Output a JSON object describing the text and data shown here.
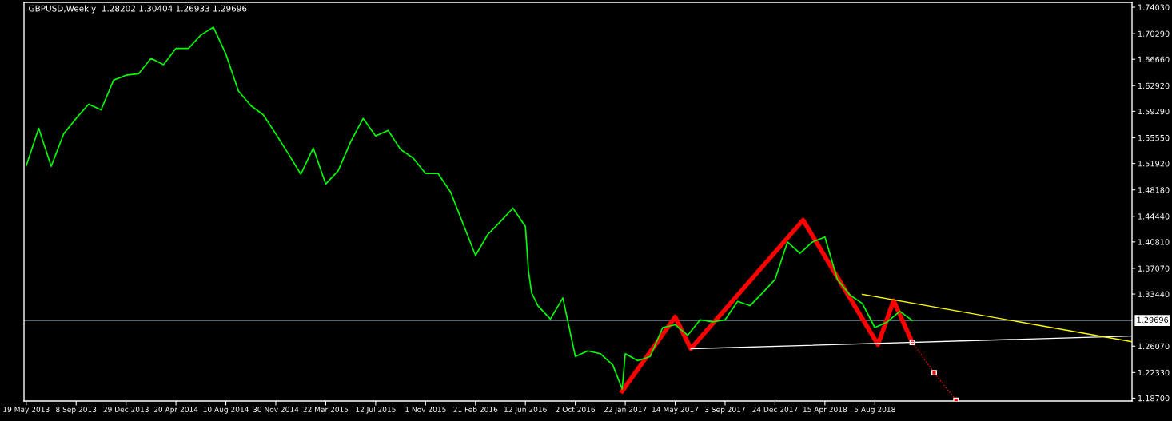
{
  "chart_data": {
    "type": "line",
    "title": "GBPUSD,Weekly  1.28202 1.30404 1.26933 1.29696",
    "xlim": [
      "2013-05-14",
      "2020-03-04"
    ],
    "ylim": [
      1.183,
      1.7471
    ],
    "xticks": [
      {
        "value": "2013-05-19",
        "label": "19 May 2013"
      },
      {
        "value": "2013-09-08",
        "label": "8 Sep 2013"
      },
      {
        "value": "2013-12-29",
        "label": "29 Dec 2013"
      },
      {
        "value": "2014-04-20",
        "label": "20 Apr 2014"
      },
      {
        "value": "2014-08-10",
        "label": "10 Aug 2014"
      },
      {
        "value": "2014-11-30",
        "label": "30 Nov 2014"
      },
      {
        "value": "2015-03-22",
        "label": "22 Mar 2015"
      },
      {
        "value": "2015-07-12",
        "label": "12 Jul 2015"
      },
      {
        "value": "2015-11-01",
        "label": "1 Nov 2015"
      },
      {
        "value": "2016-02-21",
        "label": "21 Feb 2016"
      },
      {
        "value": "2016-06-12",
        "label": "12 Jun 2016"
      },
      {
        "value": "2016-10-02",
        "label": "2 Oct 2016"
      },
      {
        "value": "2017-01-22",
        "label": "22 Jan 2017"
      },
      {
        "value": "2017-05-14",
        "label": "14 May 2017"
      },
      {
        "value": "2017-09-03",
        "label": "3 Sep 2017"
      },
      {
        "value": "2017-12-24",
        "label": "24 Dec 2017"
      },
      {
        "value": "2018-04-15",
        "label": "15 Apr 2018"
      },
      {
        "value": "2018-08-05",
        "label": "5 Aug 2018"
      }
    ],
    "yticks": [
      {
        "value": 1.7403,
        "label": "1.74030"
      },
      {
        "value": 1.7029,
        "label": "1.70290"
      },
      {
        "value": 1.6666,
        "label": "1.66660"
      },
      {
        "value": 1.6292,
        "label": "1.62920"
      },
      {
        "value": 1.5929,
        "label": "1.59290"
      },
      {
        "value": 1.5555,
        "label": "1.55550"
      },
      {
        "value": 1.5192,
        "label": "1.51920"
      },
      {
        "value": 1.4818,
        "label": "1.48180"
      },
      {
        "value": 1.4444,
        "label": "1.44440"
      },
      {
        "value": 1.4081,
        "label": "1.40810"
      },
      {
        "value": 1.3707,
        "label": "1.37070"
      },
      {
        "value": 1.3344,
        "label": "1.33440"
      },
      {
        "value": 1.2607,
        "label": "1.26070"
      },
      {
        "value": 1.2233,
        "label": "1.22330"
      },
      {
        "value": 1.187,
        "label": "1.18700"
      }
    ],
    "ref_lines": [
      {
        "axis": "y",
        "value": 1.29696,
        "label": "1.29696",
        "color": "#778899"
      }
    ],
    "series": [
      {
        "color": "#00ff00",
        "line_style": "solid",
        "x": [
          "2013-05-19",
          "2013-06-16",
          "2013-07-14",
          "2013-08-11",
          "2013-09-08",
          "2013-10-06",
          "2013-11-03",
          "2013-12-01",
          "2013-12-29",
          "2014-01-26",
          "2014-02-23",
          "2014-03-23",
          "2014-04-20",
          "2014-05-18",
          "2014-06-15",
          "2014-07-13",
          "2014-08-10",
          "2014-09-07",
          "2014-10-05",
          "2014-11-02",
          "2014-11-30",
          "2014-12-28",
          "2015-01-25",
          "2015-02-22",
          "2015-03-22",
          "2015-04-19",
          "2015-05-17",
          "2015-06-14",
          "2015-07-12",
          "2015-08-09",
          "2015-09-06",
          "2015-10-04",
          "2015-11-01",
          "2015-11-29",
          "2015-12-27",
          "2016-01-24",
          "2016-02-21",
          "2016-03-20",
          "2016-04-17",
          "2016-05-15",
          "2016-06-12",
          "2016-06-19",
          "2016-06-26",
          "2016-07-10",
          "2016-08-07",
          "2016-09-04",
          "2016-10-02",
          "2016-10-30",
          "2016-11-27",
          "2016-12-25",
          "2017-01-15",
          "2017-01-22",
          "2017-02-19",
          "2017-03-19",
          "2017-04-16",
          "2017-05-14",
          "2017-06-11",
          "2017-07-09",
          "2017-08-06",
          "2017-09-03",
          "2017-10-01",
          "2017-10-29",
          "2017-11-26",
          "2017-12-24",
          "2018-01-21",
          "2018-02-18",
          "2018-03-18",
          "2018-04-15",
          "2018-05-13",
          "2018-06-10",
          "2018-07-08",
          "2018-08-05",
          "2018-09-02",
          "2018-09-30",
          "2018-10-28"
        ],
        "values": [
          1.516,
          1.569,
          1.515,
          1.561,
          1.583,
          1.603,
          1.595,
          1.637,
          1.644,
          1.646,
          1.668,
          1.659,
          1.682,
          1.682,
          1.701,
          1.712,
          1.674,
          1.622,
          1.601,
          1.588,
          1.561,
          1.533,
          1.504,
          1.541,
          1.49,
          1.509,
          1.55,
          1.583,
          1.558,
          1.566,
          1.539,
          1.527,
          1.505,
          1.505,
          1.479,
          1.434,
          1.389,
          1.419,
          1.437,
          1.456,
          1.43,
          1.366,
          1.336,
          1.318,
          1.299,
          1.329,
          1.246,
          1.254,
          1.25,
          1.234,
          1.2,
          1.25,
          1.24,
          1.246,
          1.287,
          1.291,
          1.276,
          1.298,
          1.295,
          1.298,
          1.324,
          1.318,
          1.336,
          1.355,
          1.408,
          1.392,
          1.408,
          1.415,
          1.355,
          1.333,
          1.321,
          1.287,
          1.295,
          1.31,
          1.297
        ]
      },
      {
        "color": "#ff0000",
        "line_style": "solid",
        "x": [
          "2017-01-15",
          "2017-05-14",
          "2017-06-18",
          "2018-02-25",
          "2018-08-12",
          "2018-09-16",
          "2018-10-28"
        ],
        "values": [
          1.197,
          1.302,
          1.257,
          1.439,
          1.263,
          1.325,
          1.266
        ]
      },
      {
        "color": "#ff0000",
        "line_style": "dotted",
        "marker": "square",
        "x": [
          "2018-10-28",
          "2018-12-16",
          "2019-02-03"
        ],
        "values": [
          1.266,
          1.223,
          1.184
        ]
      },
      {
        "color": "#ffffff",
        "line_style": "solid",
        "x": [
          "2017-06-18",
          "2020-03-04"
        ],
        "values": [
          1.257,
          1.275
        ]
      },
      {
        "color": "#ffff00",
        "line_style": "solid",
        "x": [
          "2018-07-08",
          "2020-03-04"
        ],
        "values": [
          1.334,
          1.267
        ]
      }
    ]
  }
}
